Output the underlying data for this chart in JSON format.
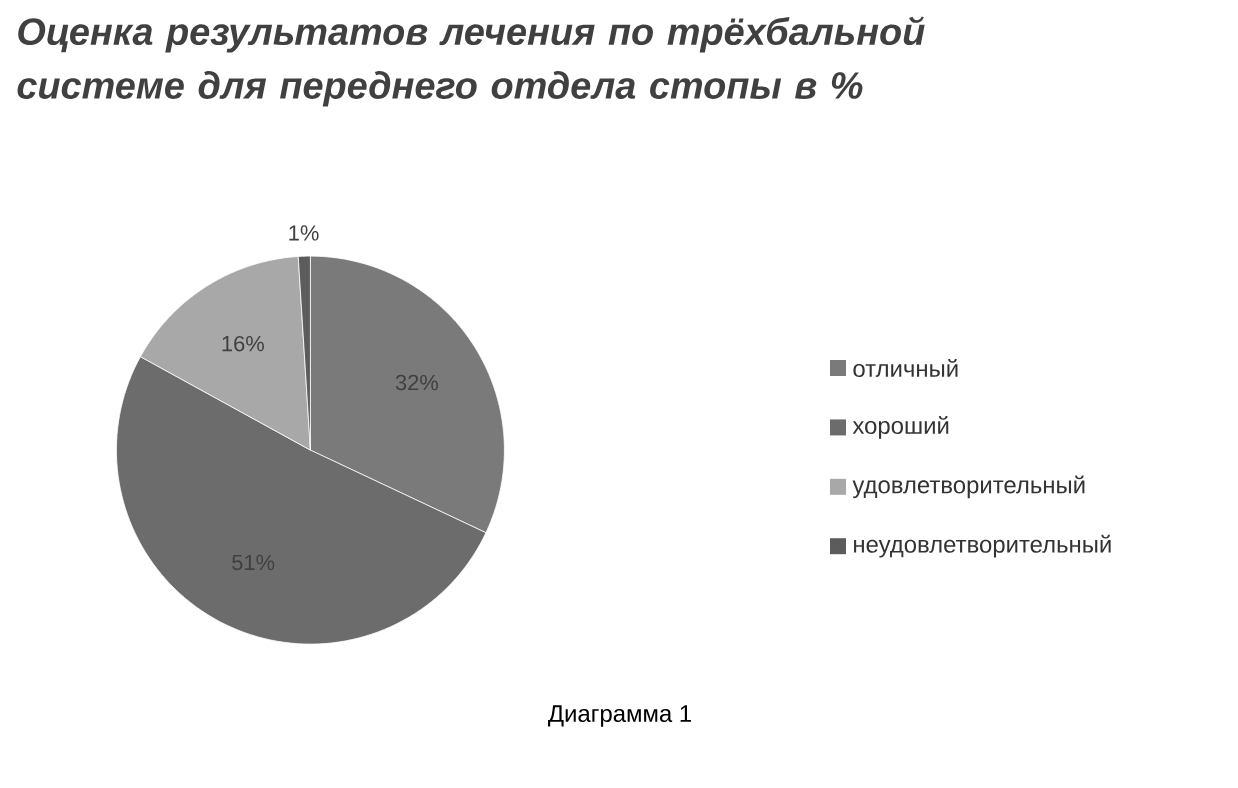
{
  "chart_data": {
    "type": "pie",
    "title": "Оценка результатов лечения по трёхбальной системе для переднего отдела стопы в %",
    "categories": [
      "отличный",
      "хороший",
      "удовлетворительный",
      "неудовлетворительный"
    ],
    "values": [
      32,
      51,
      16,
      1
    ],
    "value_labels": [
      "32%",
      "51%",
      "16%",
      "1%"
    ],
    "colors": [
      "#7a7a7a",
      "#6c6c6c",
      "#a8a8a8",
      "#5c5c5c"
    ],
    "legend": "right",
    "annotations": [
      "Диаграмма 1"
    ]
  }
}
